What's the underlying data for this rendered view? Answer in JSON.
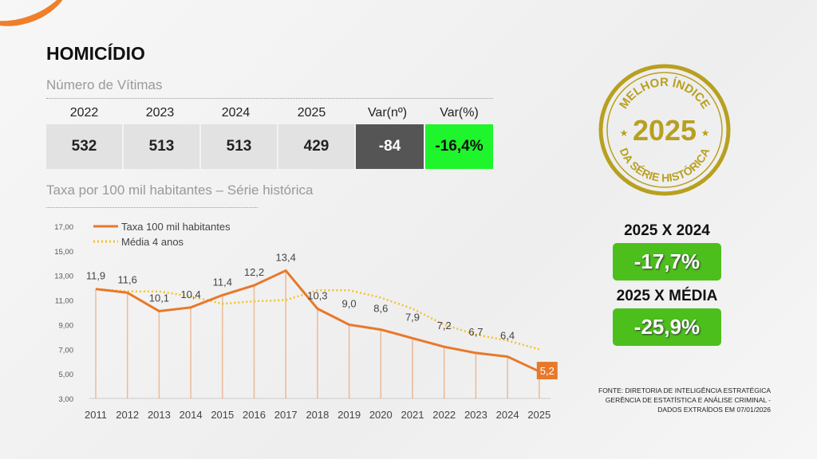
{
  "title": "HOMICÍDIO",
  "victims": {
    "subtitle": "Número de Vítimas",
    "headers": [
      "2022",
      "2023",
      "2024",
      "2025",
      "Var(nº)",
      "Var(%)"
    ],
    "values": [
      "532",
      "513",
      "513",
      "429",
      "-84",
      "-16,4%"
    ]
  },
  "rate_subtitle": "Taxa por 100 mil habitantes – Série histórica",
  "seal": {
    "top": "MELHOR ÍNDICE",
    "year": "2025",
    "bottom": "DA SÉRIE HISTÓRICA"
  },
  "comparisons": [
    {
      "label": "2025 X 2024",
      "value": "-17,7%"
    },
    {
      "label": "2025 X MÉDIA",
      "value": "-25,9%"
    }
  ],
  "source": [
    "FONTE: DIRETORIA DE INTELIGÊNCIA ESTRATÉGICA",
    "GERÊNCIA DE ESTATÍSTICA E ANÁLISE CRIMINAL -",
    "DADOS EXTRAÍDOS EM 07/01/2026"
  ],
  "colors": {
    "rate": "#e8782a",
    "average": "#f2c12e",
    "seal": "#b8a020",
    "green_box": "#4cbf1c",
    "var_green": "#1ef52c"
  },
  "chart_data": {
    "type": "line",
    "x": [
      "2011",
      "2012",
      "2013",
      "2014",
      "2015",
      "2016",
      "2017",
      "2018",
      "2019",
      "2020",
      "2021",
      "2022",
      "2023",
      "2024",
      "2025"
    ],
    "ylim": [
      3,
      17
    ],
    "yticks": [
      "3,00",
      "5,00",
      "7,00",
      "9,00",
      "11,00",
      "13,00",
      "15,00",
      "17,00"
    ],
    "legend_position": "top-left",
    "series": [
      {
        "name": "Taxa 100 mil habitantes",
        "values": [
          11.9,
          11.6,
          10.1,
          10.4,
          11.4,
          12.2,
          13.4,
          10.3,
          9.0,
          8.6,
          7.9,
          7.2,
          6.7,
          6.4,
          5.2
        ],
        "labels": [
          "11,9",
          "11,6",
          "10,1",
          "10,4",
          "11,4",
          "12,2",
          "13,4",
          "10,3",
          "9,0",
          "8,6",
          "7,9",
          "7,2",
          "6,7",
          "6,4",
          "5,2"
        ]
      },
      {
        "name": "Média 4 anos",
        "values": [
          11.9,
          11.7,
          11.7,
          11.3,
          10.7,
          10.9,
          11.0,
          11.8,
          11.8,
          11.2,
          10.3,
          9.0,
          8.2,
          7.7,
          7.0
        ]
      }
    ]
  }
}
